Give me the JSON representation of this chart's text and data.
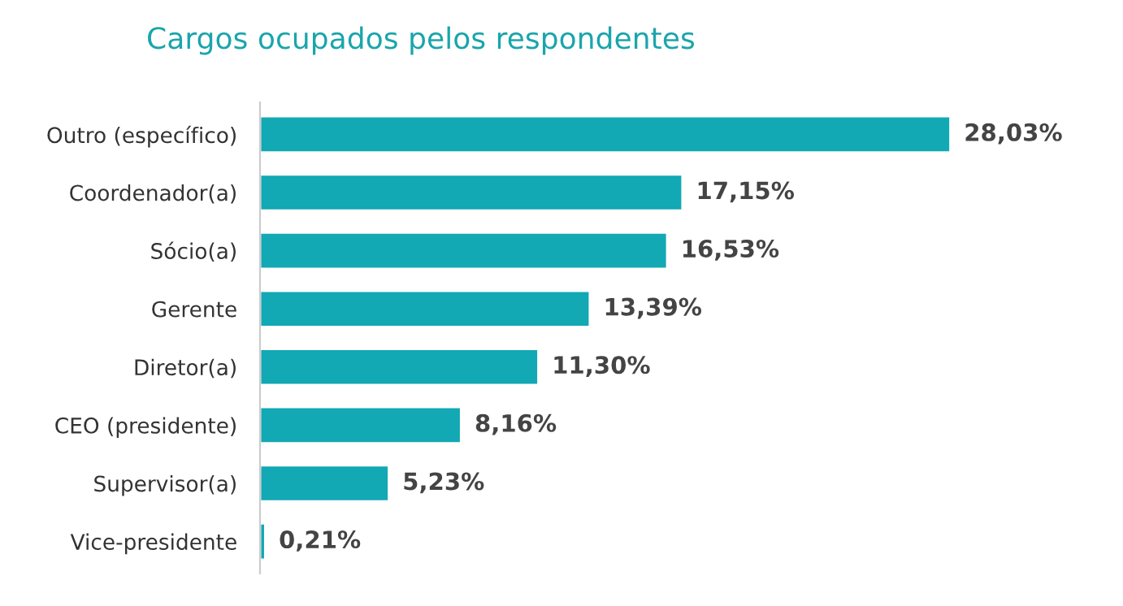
{
  "chart_data": {
    "type": "bar",
    "orientation": "horizontal",
    "title": "Cargos ocupados pelos respondentes",
    "categories": [
      "Outro (específico)",
      "Coordenador(a)",
      "Sócio(a)",
      "Gerente",
      "Diretor(a)",
      "CEO (presidente)",
      "Supervisor(a)",
      "Vice-presidente"
    ],
    "values": [
      28.03,
      17.15,
      16.53,
      13.39,
      11.3,
      8.16,
      5.23,
      0.21
    ],
    "value_labels": [
      "28,03%",
      "17,15%",
      "16,53%",
      "13,39%",
      "11,30%",
      "8,16%",
      "5,23%",
      "0,21%"
    ],
    "color": "#12a8b4"
  }
}
